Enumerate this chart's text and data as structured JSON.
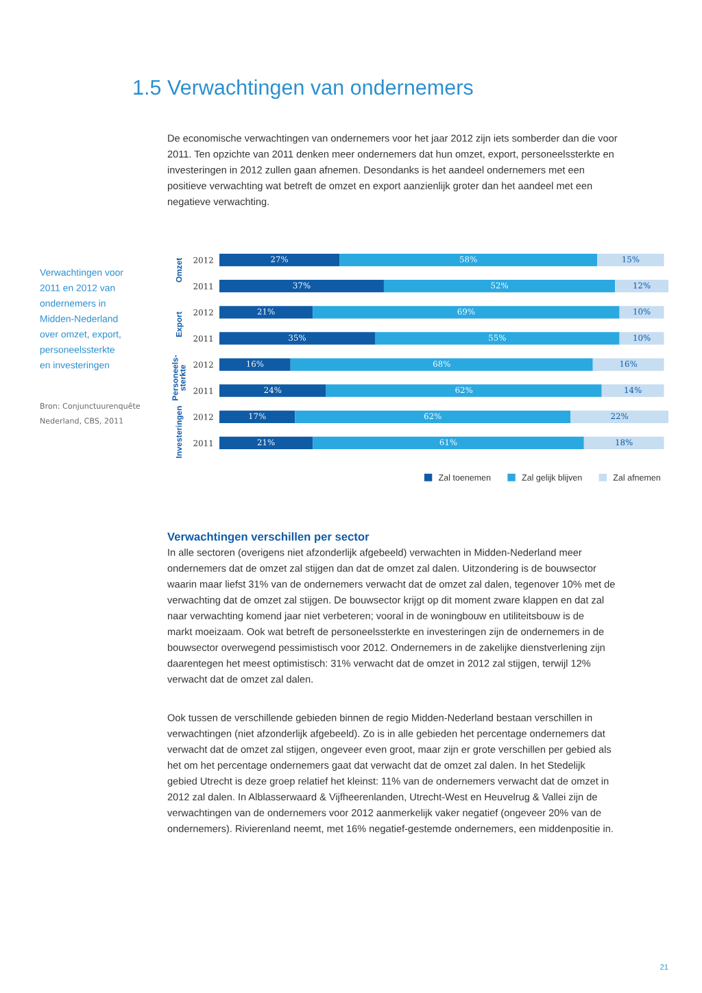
{
  "chart_data": {
    "type": "bar",
    "orientation": "horizontal",
    "stacked": true,
    "title": "1.5 Verwachtingen van ondernemers",
    "subtitle": "De economische verwachtingen van ondernemers voor het jaar 2012 zijn iets somberder dan die voor\n2011. Ten opzichte van 2011 denken meer ondernemers dat hun omzet, export, personeelssterkte en\ninvesteringen in 2012 zullen gaan afnemen. Desondanks is het aandeel ondernemers met een\npositieve verwachting wat betreft de omzet en export aanzienlijk groter dan het aandeel met een\nnegatieve verwachting.",
    "categories": [
      "2012",
      "2011",
      "2012",
      "2011",
      "2012",
      "2011",
      "2012",
      "2011"
    ],
    "series": [
      {
        "name": "Zal toenemen",
        "color": "#0f5ba6",
        "values": [
          27,
          37,
          21,
          35,
          16,
          24,
          17,
          21
        ],
        "value_labels": [
          "27%",
          "37%",
          "21%",
          "35%",
          "16%",
          "24%",
          "17%",
          "21%"
        ]
      },
      {
        "name": "Zal gelijk blijven",
        "color": "#2aa8e0",
        "values": [
          58,
          52,
          69,
          55,
          68,
          62,
          62,
          61
        ],
        "value_labels": [
          "58%",
          "52%",
          "69%",
          "55%",
          "68%",
          "62%",
          "62%",
          "61%"
        ]
      },
      {
        "name": "Zal afnemen",
        "color": "#c6ddf2",
        "values": [
          15,
          12,
          10,
          10,
          16,
          14,
          22,
          18
        ],
        "value_labels": [
          "15%",
          "12%",
          "10%",
          "10%",
          "16%",
          "14%",
          "22%",
          "18%"
        ]
      }
    ],
    "legend": "bottom right",
    "grid": false,
    "annotations": [
      "Omzet",
      "Export",
      "Personeels-\nsterkte",
      "Investeringen",
      "Verwachtingen voor\n2011 en 2012 van\nondernemers in\nMidden-Nederland\nover omzet, export,\npersoneelssterkte\nen investeringen",
      "Bron: Conjunctuurenquête\nNederland, CBS, 2011",
      "Verwachtingen verschillen per sector",
      "In alle sectoren (overigens niet afzonderlijk afgebeeld) verwachten in Midden-Nederland meer\nondernemers dat de omzet zal stijgen dan dat de omzet zal dalen. Uitzondering is de bouwsector\nwaarin maar liefst 31% van de ondernemers verwacht dat de omzet zal dalen, tegenover 10% met de\nverwachting dat de omzet zal stijgen. De bouwsector krijgt op dit moment zware klappen en dat zal\nnaar verwachting komend jaar niet verbeteren; vooral in de woningbouw en utiliteitsbouw is de\nmarkt moeizaam. Ook wat betreft de personeelssterkte en investeringen zijn de ondernemers in de\nbouwsector overwegend pessimistisch voor 2012. Ondernemers in de zakelijke dienstverlening zijn\ndaarentegen het meest optimistisch: 31% verwacht dat de omzet in 2012 zal stijgen, terwijl 12%\nverwacht dat de omzet zal dalen.",
      "Ook tussen de verschillende gebieden binnen de regio Midden-Nederland bestaan verschillen in\nverwachtingen (niet afzonderlijk afgebeeld). Zo is in alle gebieden het percentage ondernemers dat\nverwacht dat de omzet zal stijgen, ongeveer even groot, maar zijn er grote verschillen per gebied als\nhet om het percentage ondernemers gaat dat verwacht dat de omzet zal dalen. In het Stedelijk\ngebied Utrecht is deze groep relatief het kleinst: 11% van de ondernemers verwacht dat de omzet in\n2012 zal dalen. In Alblasserwaard & Vijfheerenlanden, Utrecht-West en Heuvelrug & Vallei zijn de\nverwachtingen van de ondernemers voor 2012 aanmerkelijk vaker negatief (ongeveer 20% van de\nondernemers). Rivierenland neemt, met 16% negatief-gestemde ondernemers, een middenpositie in.",
      "21"
    ]
  }
}
